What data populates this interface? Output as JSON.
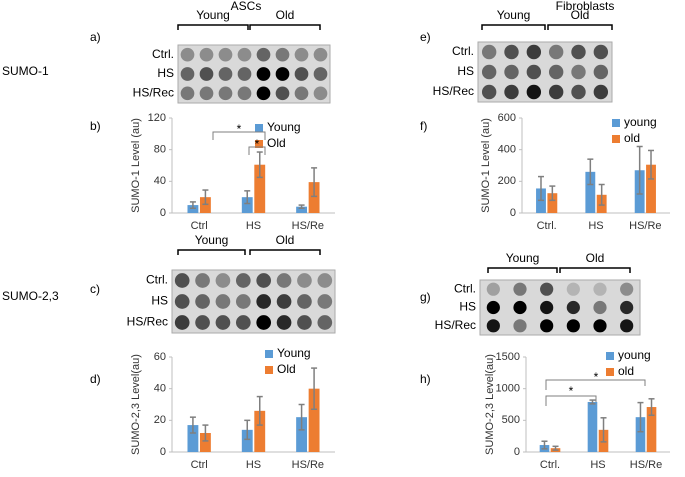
{
  "headings": {
    "left": "ASCs",
    "right": "Fibroblasts",
    "row1": "SUMO-1",
    "row2": "SUMO-2,3"
  },
  "blots": [
    {
      "panel_label": "a)",
      "group_labels": [
        "Young",
        "Old"
      ],
      "row_labels": [
        "Ctrl.",
        "HS",
        "HS/Rec"
      ]
    },
    {
      "panel_label": "c)",
      "group_labels": [
        "Young",
        "Old"
      ],
      "row_labels": [
        "Ctrl.",
        "HS",
        "HS/Rec"
      ]
    },
    {
      "panel_label": "e)",
      "group_labels": [
        "Young",
        "Old"
      ],
      "row_labels": [
        "Ctrl.",
        "HS",
        "HS/Rec"
      ]
    },
    {
      "panel_label": "g)",
      "group_labels": [
        "Young",
        "Old"
      ],
      "row_labels": [
        "Ctrl.",
        "HS",
        "HS/Rec"
      ]
    }
  ],
  "chart_data": [
    {
      "type": "bar",
      "panel_label": "b)",
      "y_label": "SUMO-1 Level (au)",
      "categories": [
        "Ctrl",
        "HS",
        "HS/Re"
      ],
      "series": [
        {
          "name": "Young",
          "color": "#5b9bd5",
          "values": [
            10,
            20,
            8
          ],
          "errors": [
            4,
            8,
            2
          ]
        },
        {
          "name": "Old",
          "color": "#ed7d31",
          "values": [
            20,
            61,
            39
          ],
          "errors": [
            9,
            16,
            18
          ]
        }
      ],
      "ylim": [
        0,
        120
      ],
      "yticks": [
        0,
        40,
        80,
        120
      ],
      "annotations": [
        {
          "text": "*"
        },
        {
          "text": "*"
        }
      ]
    },
    {
      "type": "bar",
      "panel_label": "d)",
      "y_label": "SUMO-2,3 Level(au)",
      "categories": [
        "Ctrl",
        "HS",
        "HS/Re"
      ],
      "series": [
        {
          "name": "Young",
          "color": "#5b9bd5",
          "values": [
            17,
            14,
            22
          ],
          "errors": [
            5,
            6,
            8
          ]
        },
        {
          "name": "Old",
          "color": "#ed7d31",
          "values": [
            12,
            26,
            40
          ],
          "errors": [
            5,
            9,
            13
          ]
        }
      ],
      "ylim": [
        0,
        60
      ],
      "yticks": [
        0,
        20,
        40,
        60
      ]
    },
    {
      "type": "bar",
      "panel_label": "f)",
      "y_label": "SUMO-1 Level (au)",
      "categories": [
        "Ctrl.",
        "HS",
        "HS/Re"
      ],
      "series": [
        {
          "name": "young",
          "color": "#5b9bd5",
          "values": [
            155,
            260,
            270
          ],
          "errors": [
            75,
            80,
            150
          ]
        },
        {
          "name": "old",
          "color": "#ed7d31",
          "values": [
            125,
            115,
            305
          ],
          "errors": [
            45,
            65,
            90
          ]
        }
      ],
      "ylim": [
        0,
        600
      ],
      "yticks": [
        0,
        200,
        400,
        600
      ]
    },
    {
      "type": "bar",
      "panel_label": "h)",
      "y_label": "SUMO-2,3 Level(au)",
      "categories": [
        "Ctrl.",
        "HS",
        "HS/Re"
      ],
      "series": [
        {
          "name": "young",
          "color": "#5b9bd5",
          "values": [
            110,
            790,
            550
          ],
          "errors": [
            60,
            30,
            230
          ]
        },
        {
          "name": "old",
          "color": "#ed7d31",
          "values": [
            60,
            350,
            710
          ],
          "errors": [
            30,
            190,
            130
          ]
        }
      ],
      "ylim": [
        0,
        1500
      ],
      "yticks": [
        0,
        500,
        1000,
        1500
      ],
      "annotations": [
        {
          "text": "*"
        },
        {
          "text": "*"
        }
      ]
    }
  ]
}
